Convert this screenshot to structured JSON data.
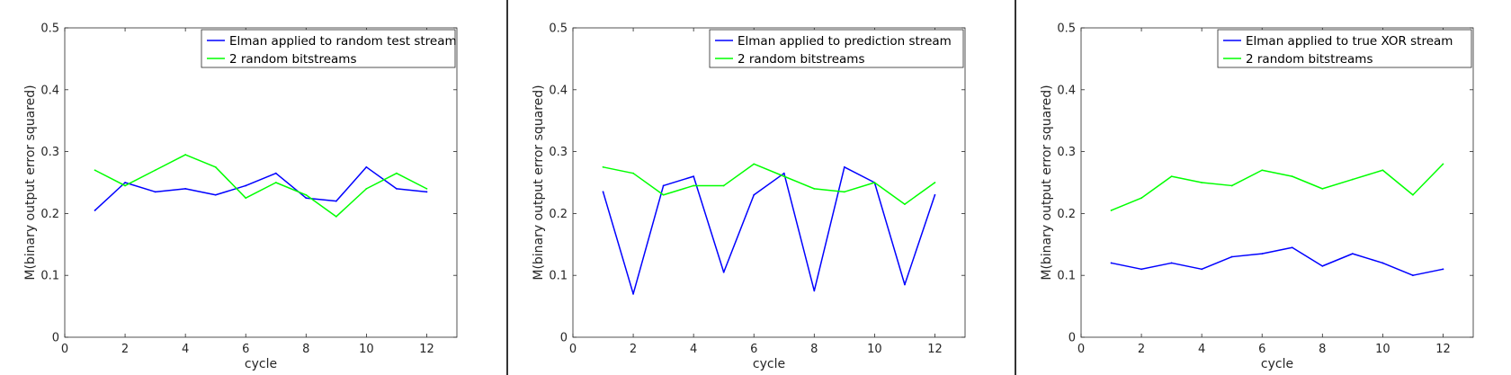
{
  "chart_data": [
    {
      "type": "line",
      "xlabel": "cycle",
      "ylabel": "M(binary output error squared)",
      "xlim": [
        0,
        13
      ],
      "ylim": [
        0,
        0.5
      ],
      "xticks": [
        0,
        2,
        4,
        6,
        8,
        10,
        12
      ],
      "yticks": [
        0,
        0.1,
        0.2,
        0.3,
        0.4,
        0.5
      ],
      "x": [
        1,
        2,
        3,
        4,
        5,
        6,
        7,
        8,
        9,
        10,
        11,
        12
      ],
      "grid": false,
      "legend_position": "top-right",
      "series": [
        {
          "name": "Elman applied to random test stream",
          "color": "#0000ff",
          "values": [
            0.205,
            0.25,
            0.235,
            0.24,
            0.23,
            0.245,
            0.265,
            0.225,
            0.22,
            0.275,
            0.24,
            0.235
          ]
        },
        {
          "name": "2 random bitstreams",
          "color": "#00ff00",
          "values": [
            0.27,
            0.245,
            0.27,
            0.295,
            0.275,
            0.225,
            0.25,
            0.23,
            0.195,
            0.24,
            0.265,
            0.24
          ]
        }
      ]
    },
    {
      "type": "line",
      "xlabel": "cycle",
      "ylabel": "M(binary output error squared)",
      "xlim": [
        0,
        13
      ],
      "ylim": [
        0,
        0.5
      ],
      "xticks": [
        0,
        2,
        4,
        6,
        8,
        10,
        12
      ],
      "yticks": [
        0,
        0.1,
        0.2,
        0.3,
        0.4,
        0.5
      ],
      "x": [
        1,
        2,
        3,
        4,
        5,
        6,
        7,
        8,
        9,
        10,
        11,
        12
      ],
      "grid": false,
      "legend_position": "top-right",
      "series": [
        {
          "name": "Elman applied to prediction stream",
          "color": "#0000ff",
          "values": [
            0.235,
            0.07,
            0.245,
            0.26,
            0.105,
            0.23,
            0.265,
            0.075,
            0.275,
            0.25,
            0.085,
            0.23
          ]
        },
        {
          "name": "2 random bitstreams",
          "color": "#00ff00",
          "values": [
            0.275,
            0.265,
            0.23,
            0.245,
            0.245,
            0.28,
            0.26,
            0.24,
            0.235,
            0.25,
            0.215,
            0.25
          ]
        }
      ]
    },
    {
      "type": "line",
      "xlabel": "cycle",
      "ylabel": "M(binary output error squared)",
      "xlim": [
        0,
        13
      ],
      "ylim": [
        0,
        0.5
      ],
      "xticks": [
        0,
        2,
        4,
        6,
        8,
        10,
        12
      ],
      "yticks": [
        0,
        0.1,
        0.2,
        0.3,
        0.4,
        0.5
      ],
      "x": [
        1,
        2,
        3,
        4,
        5,
        6,
        7,
        8,
        9,
        10,
        11,
        12
      ],
      "grid": false,
      "legend_position": "top-right",
      "series": [
        {
          "name": "Elman applied to true XOR stream",
          "color": "#0000ff",
          "values": [
            0.12,
            0.11,
            0.12,
            0.11,
            0.13,
            0.135,
            0.145,
            0.115,
            0.135,
            0.12,
            0.1,
            0.11
          ]
        },
        {
          "name": "2 random bitstreams",
          "color": "#00ff00",
          "values": [
            0.205,
            0.225,
            0.26,
            0.25,
            0.245,
            0.27,
            0.26,
            0.24,
            0.255,
            0.27,
            0.23,
            0.28
          ]
        }
      ]
    }
  ]
}
